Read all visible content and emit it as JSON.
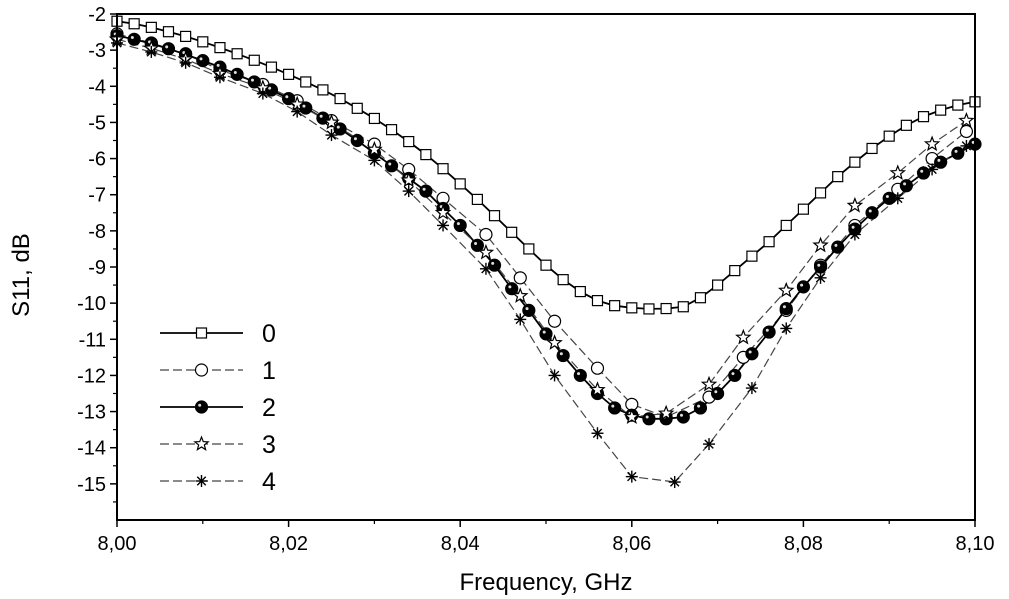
{
  "chart_data": {
    "type": "line",
    "title": "",
    "xlabel": "Frequency, GHz",
    "ylabel": "S11, dB",
    "xlim": [
      8.0,
      8.1
    ],
    "ylim": [
      -16,
      -2
    ],
    "x_ticks": [
      {
        "v": 8.0,
        "label": "8,00"
      },
      {
        "v": 8.02,
        "label": "8,02"
      },
      {
        "v": 8.04,
        "label": "8,04"
      },
      {
        "v": 8.06,
        "label": "8,06"
      },
      {
        "v": 8.08,
        "label": "8,08"
      },
      {
        "v": 8.1,
        "label": "8,10"
      }
    ],
    "y_ticks": [
      {
        "v": -2,
        "label": "-2"
      },
      {
        "v": -3,
        "label": "-3"
      },
      {
        "v": -4,
        "label": "-4"
      },
      {
        "v": -5,
        "label": "-5"
      },
      {
        "v": -6,
        "label": "-6"
      },
      {
        "v": -7,
        "label": "-7"
      },
      {
        "v": -8,
        "label": "-8"
      },
      {
        "v": -9,
        "label": "-9"
      },
      {
        "v": -10,
        "label": "-10"
      },
      {
        "v": -11,
        "label": "-11"
      },
      {
        "v": -12,
        "label": "-12"
      },
      {
        "v": -13,
        "label": "-13"
      },
      {
        "v": -14,
        "label": "-14"
      },
      {
        "v": -15,
        "label": "-15"
      }
    ],
    "grid": false,
    "legend_position": "bottom-left",
    "series": [
      {
        "name": "0",
        "marker": "square",
        "line": "solid",
        "x": [
          8.0,
          8.002,
          8.004,
          8.006,
          8.008,
          8.01,
          8.012,
          8.014,
          8.016,
          8.018,
          8.02,
          8.022,
          8.024,
          8.026,
          8.028,
          8.03,
          8.032,
          8.034,
          8.036,
          8.038,
          8.04,
          8.042,
          8.044,
          8.046,
          8.048,
          8.05,
          8.052,
          8.054,
          8.056,
          8.058,
          8.06,
          8.062,
          8.064,
          8.066,
          8.068,
          8.07,
          8.072,
          8.074,
          8.076,
          8.078,
          8.08,
          8.082,
          8.084,
          8.086,
          8.088,
          8.09,
          8.092,
          8.094,
          8.096,
          8.098,
          8.1
        ],
        "y": [
          -2.2,
          -2.27,
          -2.37,
          -2.49,
          -2.62,
          -2.77,
          -2.93,
          -3.1,
          -3.28,
          -3.47,
          -3.67,
          -3.88,
          -4.1,
          -4.34,
          -4.61,
          -4.89,
          -5.2,
          -5.53,
          -5.89,
          -6.28,
          -6.7,
          -7.13,
          -7.58,
          -8.04,
          -8.5,
          -8.95,
          -9.35,
          -9.68,
          -9.93,
          -10.07,
          -10.13,
          -10.16,
          -10.15,
          -10.1,
          -9.85,
          -9.5,
          -9.1,
          -8.7,
          -8.3,
          -7.85,
          -7.4,
          -6.95,
          -6.5,
          -6.1,
          -5.72,
          -5.38,
          -5.08,
          -4.84,
          -4.66,
          -4.52,
          -4.43
        ]
      },
      {
        "name": "1",
        "marker": "circle-open",
        "line": "dashed",
        "x": [
          8.0,
          8.004,
          8.008,
          8.012,
          8.017,
          8.021,
          8.025,
          8.03,
          8.034,
          8.038,
          8.043,
          8.047,
          8.051,
          8.056,
          8.06,
          8.064,
          8.069,
          8.073,
          8.078,
          8.082,
          8.086,
          8.091,
          8.095,
          8.099
        ],
        "y": [
          -2.55,
          -2.8,
          -3.1,
          -3.55,
          -3.95,
          -4.4,
          -4.95,
          -5.6,
          -6.3,
          -7.1,
          -8.1,
          -9.3,
          -10.5,
          -11.8,
          -12.8,
          -13.15,
          -12.6,
          -11.5,
          -10.2,
          -8.95,
          -7.85,
          -6.85,
          -6.0,
          -5.25
        ]
      },
      {
        "name": "2",
        "marker": "circle-filled",
        "line": "solid",
        "x": [
          8.0,
          8.002,
          8.004,
          8.006,
          8.008,
          8.01,
          8.012,
          8.014,
          8.016,
          8.018,
          8.02,
          8.022,
          8.024,
          8.026,
          8.028,
          8.03,
          8.032,
          8.034,
          8.036,
          8.038,
          8.04,
          8.042,
          8.044,
          8.046,
          8.048,
          8.05,
          8.052,
          8.054,
          8.056,
          8.058,
          8.06,
          8.062,
          8.064,
          8.066,
          8.068,
          8.07,
          8.072,
          8.074,
          8.076,
          8.078,
          8.08,
          8.082,
          8.084,
          8.086,
          8.088,
          8.09,
          8.092,
          8.094,
          8.096,
          8.098,
          8.1
        ],
        "y": [
          -2.6,
          -2.7,
          -2.82,
          -2.96,
          -3.12,
          -3.29,
          -3.47,
          -3.67,
          -3.88,
          -4.1,
          -4.34,
          -4.6,
          -4.88,
          -5.18,
          -5.5,
          -5.85,
          -6.2,
          -6.55,
          -6.9,
          -7.38,
          -7.85,
          -8.4,
          -8.95,
          -9.6,
          -10.2,
          -10.85,
          -11.45,
          -12.0,
          -12.5,
          -12.9,
          -13.1,
          -13.2,
          -13.2,
          -13.15,
          -12.9,
          -12.5,
          -12.0,
          -11.4,
          -10.8,
          -10.15,
          -9.55,
          -9.0,
          -8.45,
          -7.95,
          -7.5,
          -7.1,
          -6.75,
          -6.4,
          -6.1,
          -5.85,
          -5.6
        ]
      },
      {
        "name": "3",
        "marker": "star",
        "line": "dashed",
        "x": [
          8.0,
          8.004,
          8.008,
          8.012,
          8.017,
          8.021,
          8.025,
          8.03,
          8.034,
          8.038,
          8.043,
          8.047,
          8.051,
          8.056,
          8.06,
          8.064,
          8.069,
          8.073,
          8.078,
          8.082,
          8.086,
          8.091,
          8.095,
          8.099
        ],
        "y": [
          -2.7,
          -2.95,
          -3.25,
          -3.65,
          -4.05,
          -4.5,
          -5.0,
          -5.75,
          -6.6,
          -7.5,
          -8.6,
          -9.8,
          -11.1,
          -12.4,
          -13.15,
          -13.05,
          -12.25,
          -10.95,
          -9.65,
          -8.4,
          -7.3,
          -6.4,
          -5.6,
          -4.95
        ]
      },
      {
        "name": "4",
        "marker": "asterisk",
        "line": "dashed",
        "x": [
          8.0,
          8.004,
          8.008,
          8.012,
          8.017,
          8.021,
          8.025,
          8.03,
          8.034,
          8.038,
          8.043,
          8.047,
          8.051,
          8.056,
          8.06,
          8.065,
          8.069,
          8.074,
          8.078,
          8.082,
          8.086,
          8.091,
          8.095,
          8.099
        ],
        "y": [
          -2.8,
          -3.05,
          -3.35,
          -3.75,
          -4.2,
          -4.7,
          -5.35,
          -6.05,
          -6.9,
          -7.85,
          -9.05,
          -10.45,
          -12.0,
          -13.6,
          -14.8,
          -14.95,
          -13.9,
          -12.35,
          -10.7,
          -9.3,
          -8.1,
          -7.1,
          -6.3,
          -5.65
        ]
      }
    ]
  }
}
